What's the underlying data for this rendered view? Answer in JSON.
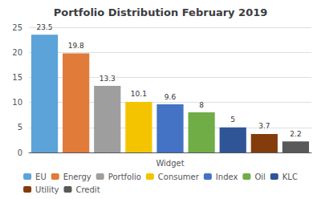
{
  "chart_data": {
    "type": "bar",
    "title": "Portfolio Distribution February 2019",
    "xlabel": "Widget",
    "categories": [
      "EU",
      "Energy",
      "Portfolio",
      "Consumer",
      "Index",
      "Oil",
      "KLC",
      "Utility",
      "Credit"
    ],
    "values": [
      23.5,
      19.8,
      13.3,
      10.1,
      9.6,
      8,
      5,
      3.7,
      2.2
    ],
    "colors": [
      "#5BA3D9",
      "#E07B39",
      "#9E9E9E",
      "#F5C400",
      "#4472C4",
      "#70AD47",
      "#2F5597",
      "#843C0C",
      "#595959"
    ],
    "ylim": [
      0,
      25
    ],
    "yticks": [
      0,
      5,
      10,
      15,
      20,
      25
    ],
    "grid": true,
    "legend": "bottom",
    "data_labels": true,
    "tick_labels": "y"
  }
}
